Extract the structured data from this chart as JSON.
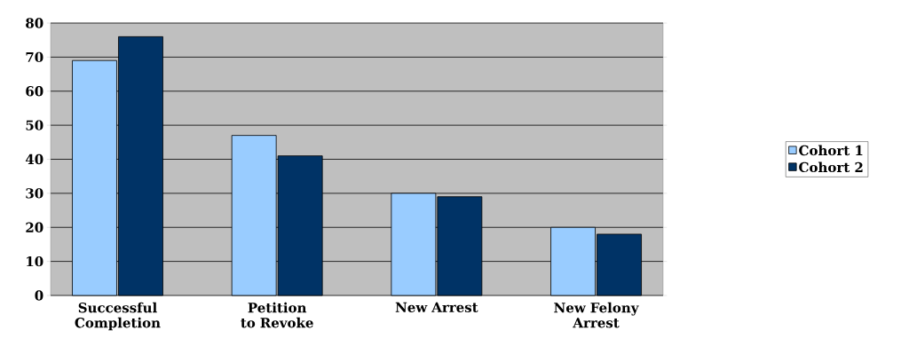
{
  "chart_data": {
    "type": "bar",
    "categories": [
      "Successful Completion",
      "Petition to Revoke",
      "New Arrest",
      "New Felony Arrest"
    ],
    "series": [
      {
        "name": "Cohort 1",
        "color": "#99ccff",
        "values": [
          69,
          47,
          30,
          20
        ]
      },
      {
        "name": "Cohort 2",
        "color": "#003366",
        "values": [
          76,
          41,
          29,
          18
        ]
      }
    ],
    "ylim": [
      0,
      80
    ],
    "yticks": [
      0,
      10,
      20,
      30,
      40,
      50,
      60,
      70,
      80
    ],
    "grid": "y",
    "legend": "right"
  }
}
